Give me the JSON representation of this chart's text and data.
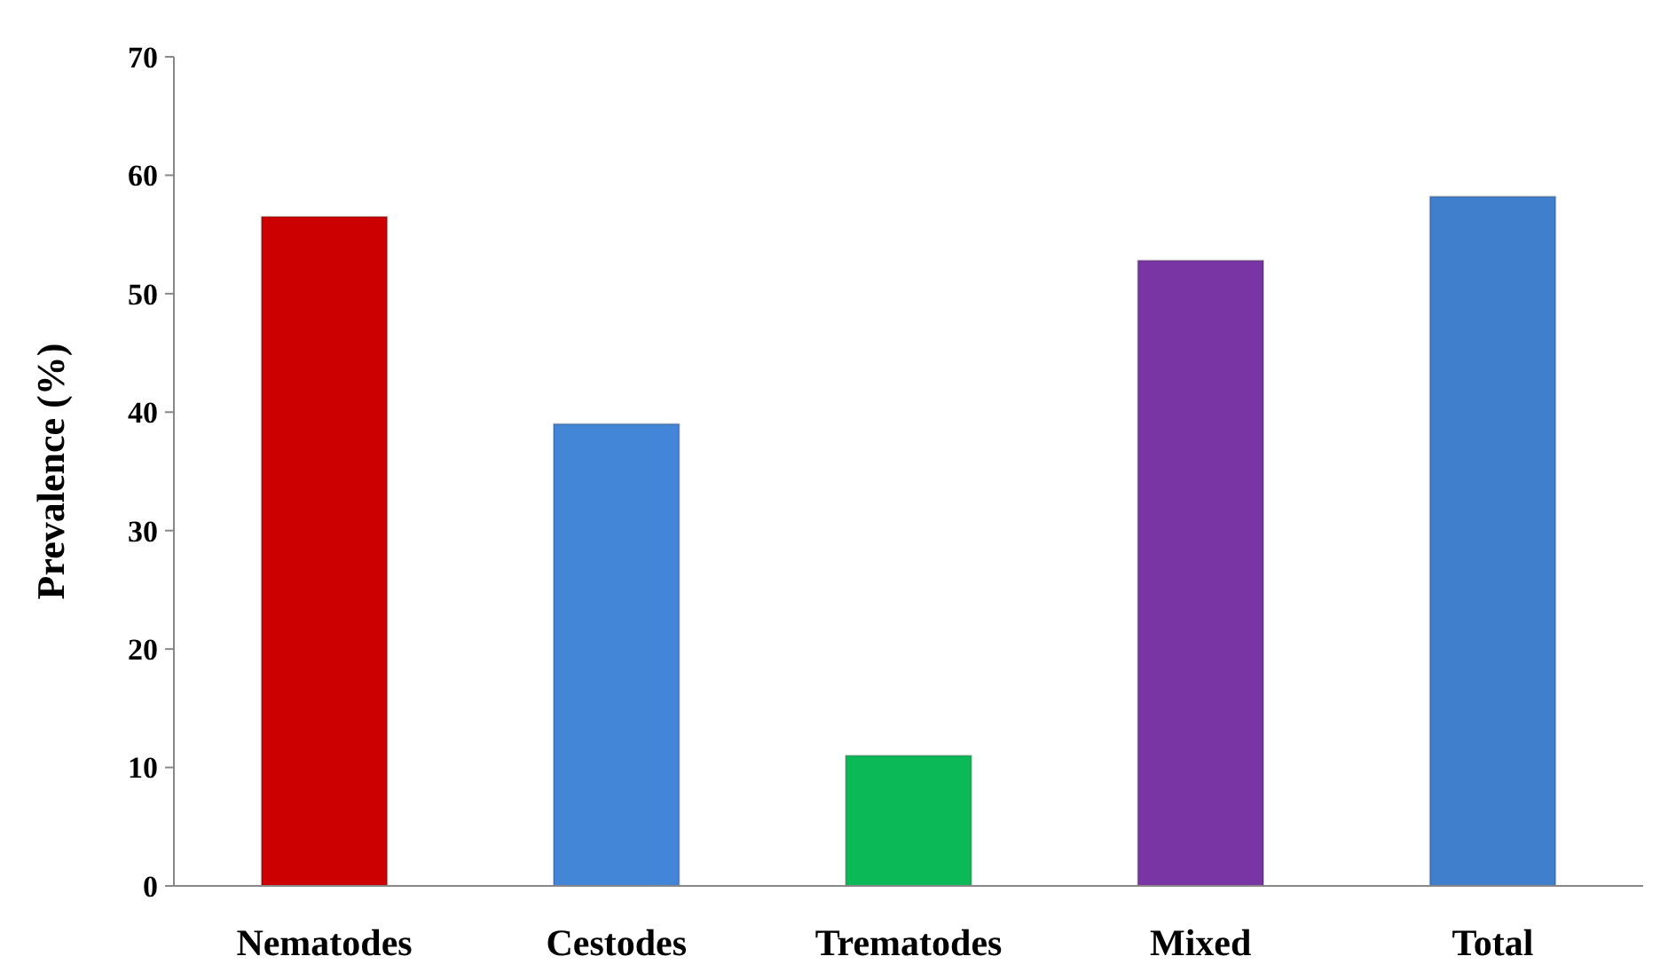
{
  "chart_data": {
    "type": "bar",
    "ylabel": "Prevalence (%)",
    "categories": [
      "Nematodes",
      "Cestodes",
      "Trematodes",
      "Mixed",
      "Total"
    ],
    "values": [
      56.5,
      39,
      11,
      52.8,
      58.2
    ],
    "colors": [
      "#cc0000",
      "#4385d6",
      "#0bb956",
      "#7a35a5",
      "#3f7fcc"
    ],
    "ylim": [
      0,
      70
    ],
    "yticks": [
      0,
      10,
      20,
      30,
      40,
      50,
      60,
      70
    ],
    "grid": false
  }
}
